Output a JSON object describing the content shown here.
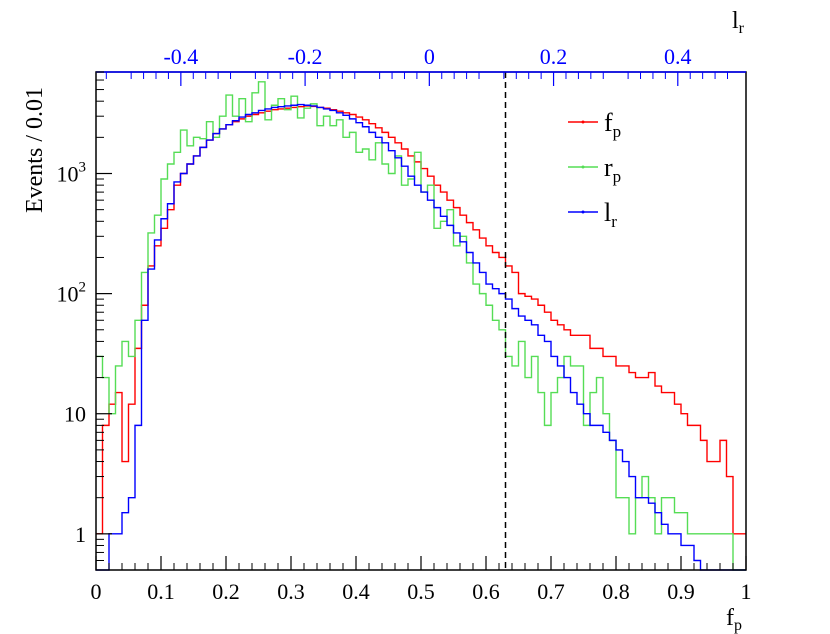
{
  "chart_data": {
    "type": "step-histogram",
    "title": "",
    "ylabel": "Events / 0.01",
    "xlabel": {
      "main": "f",
      "sub": "p"
    },
    "top_axis_label": {
      "main": "l",
      "sub": "r"
    },
    "yscale": "log",
    "xlim": [
      0,
      1
    ],
    "ylim": [
      0.5,
      7000
    ],
    "top_xlim": [
      -0.5366,
      0.5098
    ],
    "x_ticks": [
      {
        "v": 0,
        "label": "0"
      },
      {
        "v": 0.1,
        "label": "0.1"
      },
      {
        "v": 0.2,
        "label": "0.2"
      },
      {
        "v": 0.3,
        "label": "0.3"
      },
      {
        "v": 0.4,
        "label": "0.4"
      },
      {
        "v": 0.5,
        "label": "0.5"
      },
      {
        "v": 0.6,
        "label": "0.6"
      },
      {
        "v": 0.7,
        "label": "0.7"
      },
      {
        "v": 0.8,
        "label": "0.8"
      },
      {
        "v": 0.9,
        "label": "0.9"
      },
      {
        "v": 1,
        "label": "1"
      }
    ],
    "y_ticks": [
      {
        "v": 1,
        "label": "1",
        "sup": ""
      },
      {
        "v": 10,
        "label": "10",
        "sup": ""
      },
      {
        "v": 100,
        "label": "10",
        "sup": "2"
      },
      {
        "v": 1000,
        "label": "10",
        "sup": "3"
      }
    ],
    "top_ticks": [
      {
        "v": -0.4,
        "label": "-0.4"
      },
      {
        "v": -0.2,
        "label": "-0.2"
      },
      {
        "v": 0,
        "label": "0"
      },
      {
        "v": 0.2,
        "label": "0.2"
      },
      {
        "v": 0.4,
        "label": "0.4"
      }
    ],
    "cut_line_x": 0.63,
    "bin_width": 0.01,
    "legend": {
      "position": "top-right"
    },
    "series": [
      {
        "name": "f",
        "sub": "p",
        "color": "#ff0000",
        "values": [
          1,
          8,
          12,
          15,
          4,
          12,
          35,
          80,
          170,
          250,
          350,
          500,
          800,
          1000,
          1200,
          1400,
          1650,
          1900,
          2150,
          2350,
          2550,
          2700,
          2850,
          3000,
          3100,
          3200,
          3300,
          3400,
          3450,
          3500,
          3550,
          3600,
          3650,
          3620,
          3550,
          3500,
          3400,
          3300,
          3200,
          3100,
          2950,
          2800,
          2600,
          2400,
          2200,
          2000,
          1800,
          1600,
          1400,
          1250,
          1100,
          950,
          800,
          700,
          600,
          520,
          450,
          390,
          340,
          290,
          250,
          220,
          200,
          170,
          150,
          100,
          95,
          90,
          80,
          70,
          60,
          55,
          50,
          45,
          45,
          45,
          35,
          35,
          30,
          30,
          25,
          25,
          22,
          20,
          20,
          22,
          17,
          15,
          15,
          12,
          10,
          8,
          8,
          6,
          4,
          4,
          6,
          3,
          1,
          1
        ]
      },
      {
        "name": "r",
        "sub": "p",
        "color": "#55dd55",
        "values": [
          30,
          20,
          10,
          25,
          40,
          30,
          60,
          150,
          320,
          450,
          900,
          1200,
          1500,
          2300,
          1700,
          2000,
          1950,
          2700,
          2000,
          3000,
          4500,
          3000,
          4200,
          2700,
          4700,
          5800,
          2800,
          3700,
          4200,
          3400,
          4400,
          2900,
          3500,
          3800,
          2500,
          3000,
          2500,
          2800,
          2000,
          2200,
          1500,
          1600,
          1300,
          1800,
          1200,
          1000,
          1400,
          800,
          900,
          1500,
          700,
          800,
          350,
          400,
          500,
          250,
          300,
          180,
          120,
          100,
          80,
          60,
          50,
          30,
          25,
          40,
          20,
          30,
          15,
          8,
          15,
          20,
          30,
          25,
          25,
          8,
          15,
          20,
          10,
          6,
          2,
          2,
          1,
          2,
          3,
          2,
          1,
          2,
          2,
          1.5,
          1.5,
          1,
          1,
          1,
          1,
          1,
          1,
          1,
          0.5,
          0.5
        ]
      },
      {
        "name": "l",
        "sub": "r",
        "color": "#0000ff",
        "values": [
          0.5,
          0.5,
          1,
          1,
          1.5,
          2,
          8,
          60,
          160,
          280,
          420,
          560,
          850,
          1000,
          1200,
          1400,
          1650,
          1900,
          2150,
          2350,
          2550,
          2750,
          2950,
          3100,
          3200,
          3350,
          3450,
          3550,
          3600,
          3650,
          3700,
          3750,
          3700,
          3650,
          3550,
          3450,
          3350,
          3200,
          3050,
          2850,
          2650,
          2450,
          2200,
          2000,
          1800,
          1550,
          1350,
          1150,
          950,
          800,
          700,
          600,
          520,
          440,
          370,
          320,
          270,
          220,
          180,
          150,
          120,
          110,
          100,
          90,
          75,
          65,
          60,
          55,
          45,
          40,
          30,
          25,
          20,
          15,
          12,
          10,
          8,
          8,
          7,
          6,
          5,
          4,
          3,
          2,
          2,
          1.8,
          1.5,
          1.2,
          1,
          1,
          0.8,
          0.8,
          0.6,
          0.5,
          0.5,
          0.5,
          0.5,
          0.5,
          0.5,
          0.5
        ]
      }
    ]
  }
}
